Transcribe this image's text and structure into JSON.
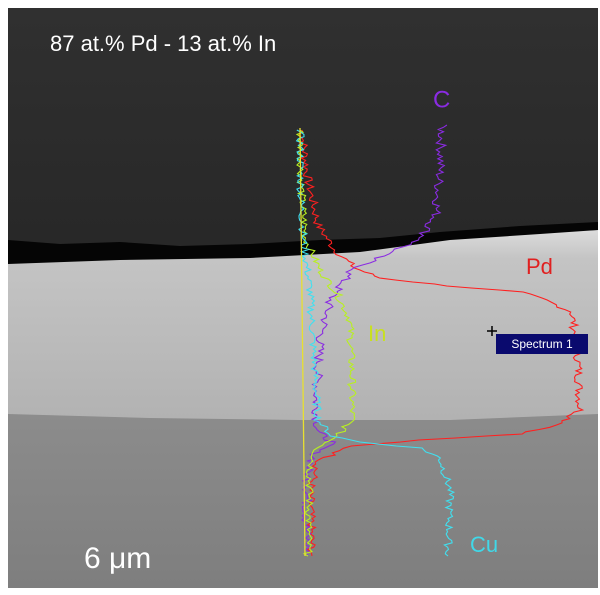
{
  "title": "87 at.% Pd - 13 at.% In",
  "labels": {
    "c": "C",
    "pd": "Pd",
    "in": "In",
    "cu": "Cu"
  },
  "spectrum_label": "Spectrum 1",
  "scale_bar": "6 μm"
}
